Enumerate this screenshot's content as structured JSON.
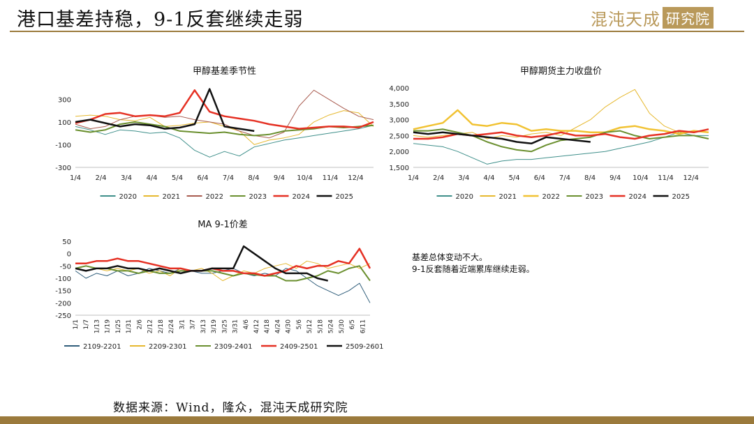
{
  "page": {
    "title": "港口基差持稳，9-1反套继续走弱",
    "logo_text": "混沌天成",
    "logo_boxed_text": "研究院",
    "notes": [
      "基差总体变动不大。",
      "9-1反套随着近端累库继续走弱。"
    ],
    "source": "数据来源：Wind，隆众，混沌天成研究院",
    "colors": {
      "accent": "#9b7a3c",
      "logo": "#b9995a"
    }
  },
  "chart_data": [
    {
      "id": "basis",
      "type": "line",
      "title": "甲醇基差季节性",
      "xlabel": "",
      "ylabel": "",
      "x_ticks": [
        "1/4",
        "2/4",
        "3/4",
        "4/4",
        "5/4",
        "6/4",
        "7/4",
        "8/4",
        "9/4",
        "10/4",
        "11/4",
        "12/4"
      ],
      "y_ticks": [
        300,
        100,
        -100,
        -300
      ],
      "ylim": [
        -300,
        400
      ],
      "legend_position": "bottom",
      "series": [
        {
          "name": "2020",
          "color": "#3e8f8a",
          "width": 1,
          "values": [
            60,
            30,
            -10,
            30,
            20,
            0,
            10,
            -40,
            -150,
            -210,
            -160,
            -200,
            -120,
            -90,
            -60,
            -40,
            -20,
            0,
            20,
            40,
            70
          ]
        },
        {
          "name": "2021",
          "color": "#e6b82e",
          "width": 1,
          "values": [
            150,
            160,
            150,
            120,
            110,
            140,
            60,
            70,
            90,
            100,
            60,
            20,
            -100,
            -60,
            -40,
            -10,
            100,
            160,
            200,
            180,
            60
          ]
        },
        {
          "name": "2022",
          "color": "#a85a4e",
          "width": 1,
          "values": [
            80,
            40,
            60,
            120,
            150,
            160,
            140,
            150,
            120,
            100,
            80,
            20,
            -20,
            -40,
            10,
            240,
            380,
            300,
            220,
            150,
            120
          ]
        },
        {
          "name": "2023",
          "color": "#6a8f2e",
          "width": 2,
          "values": [
            30,
            10,
            30,
            80,
            100,
            80,
            60,
            20,
            10,
            0,
            10,
            -10,
            -20,
            -10,
            20,
            30,
            40,
            60,
            50,
            60,
            70
          ]
        },
        {
          "name": "2024",
          "color": "#e53023",
          "width": 2.5,
          "values": [
            90,
            120,
            170,
            180,
            150,
            160,
            150,
            180,
            380,
            190,
            150,
            130,
            110,
            80,
            60,
            40,
            50,
            60,
            60,
            50,
            100
          ]
        },
        {
          "name": "2025",
          "color": "#111111",
          "width": 2.5,
          "values": [
            100,
            120,
            90,
            60,
            80,
            70,
            40,
            50,
            80,
            390,
            60,
            40,
            20,
            null,
            null,
            null,
            null,
            null,
            null,
            null,
            null
          ]
        }
      ]
    },
    {
      "id": "futures",
      "type": "line",
      "title": "甲醇期货主力收盘价",
      "xlabel": "",
      "ylabel": "",
      "x_ticks": [
        "1/4",
        "2/4",
        "3/4",
        "4/4",
        "5/4",
        "6/4",
        "7/4",
        "8/4",
        "9/4",
        "10/4",
        "11/4",
        "12/4"
      ],
      "y_ticks": [
        "4,000",
        "3,500",
        "3,000",
        "2,500",
        "2,000",
        "1,500"
      ],
      "ylim": [
        1500,
        4000
      ],
      "legend_position": "bottom",
      "series": [
        {
          "name": "2020",
          "color": "#3e8f8a",
          "width": 1,
          "values": [
            2250,
            2200,
            2150,
            2000,
            1800,
            1600,
            1700,
            1750,
            1750,
            1800,
            1850,
            1900,
            1950,
            2000,
            2100,
            2200,
            2300,
            2450,
            2600,
            2500,
            2500
          ]
        },
        {
          "name": "2021",
          "color": "#e6b82e",
          "width": 1,
          "values": [
            2500,
            2450,
            2500,
            2550,
            2600,
            2400,
            2500,
            2450,
            2550,
            2600,
            2500,
            2750,
            3000,
            3400,
            3700,
            3950,
            3200,
            2800,
            2600,
            2650,
            2600
          ]
        },
        {
          "name": "2022",
          "color": "#f1c232",
          "width": 2.5,
          "values": [
            2700,
            2800,
            2900,
            3300,
            2850,
            2800,
            2900,
            2850,
            2650,
            2700,
            2650,
            2650,
            2600,
            2600,
            2750,
            2800,
            2700,
            2650,
            2550,
            2650,
            2600
          ]
        },
        {
          "name": "2023",
          "color": "#6a8f2e",
          "width": 2,
          "values": [
            2650,
            2650,
            2700,
            2600,
            2500,
            2300,
            2150,
            2050,
            2000,
            2200,
            2350,
            2400,
            2450,
            2600,
            2650,
            2500,
            2400,
            2450,
            2500,
            2500,
            2400
          ]
        },
        {
          "name": "2024",
          "color": "#e53023",
          "width": 2.5,
          "values": [
            2400,
            2400,
            2450,
            2550,
            2500,
            2550,
            2600,
            2500,
            2450,
            2500,
            2600,
            2500,
            2500,
            2550,
            2450,
            2400,
            2500,
            2550,
            2650,
            2600,
            2700
          ]
        },
        {
          "name": "2025",
          "color": "#111111",
          "width": 2.5,
          "values": [
            2600,
            2550,
            2600,
            2550,
            2500,
            2450,
            2400,
            2300,
            2250,
            2450,
            2400,
            2350,
            2300,
            null,
            null,
            null,
            null,
            null,
            null,
            null,
            null
          ]
        }
      ]
    },
    {
      "id": "spread",
      "type": "line",
      "title": "MA 9-1价差",
      "xlabel": "",
      "ylabel": "",
      "x_ticks": [
        "1/1",
        "1/7",
        "1/13",
        "1/19",
        "1/25",
        "1/31",
        "2/6",
        "2/12",
        "2/18",
        "2/24",
        "3/1",
        "3/7",
        "3/13",
        "3/19",
        "3/25",
        "3/31",
        "4/6",
        "4/12",
        "4/18",
        "4/24",
        "4/30",
        "5/6",
        "5/12",
        "5/18",
        "5/24",
        "5/30",
        "6/5",
        "6/11"
      ],
      "y_ticks": [
        50,
        0,
        -50,
        -100,
        -150,
        -200,
        -250
      ],
      "ylim": [
        -250,
        50
      ],
      "legend_position": "bottom",
      "series": [
        {
          "name": "2109-2201",
          "color": "#2f5d7a",
          "width": 1,
          "values": [
            -70,
            -100,
            -80,
            -90,
            -70,
            -90,
            -80,
            -60,
            -70,
            -80,
            -60,
            -70,
            -80,
            -80,
            -70,
            -60,
            -80,
            -90,
            -80,
            -90,
            -60,
            -70,
            -100,
            -130,
            -150,
            -170,
            -150,
            -120,
            -200
          ]
        },
        {
          "name": "2209-2301",
          "color": "#e6b82e",
          "width": 1,
          "values": [
            -60,
            -50,
            -60,
            -70,
            -60,
            -70,
            -60,
            -80,
            -70,
            -90,
            -60,
            -70,
            -60,
            -80,
            -110,
            -90,
            -70,
            -80,
            -60,
            -50,
            -40,
            -60,
            -30,
            -40,
            -60,
            -50,
            -40,
            -60,
            -40
          ]
        },
        {
          "name": "2309-2401",
          "color": "#6a8f2e",
          "width": 2,
          "values": [
            -60,
            -50,
            -60,
            -60,
            -70,
            -70,
            -80,
            -70,
            -80,
            -80,
            -70,
            -70,
            -70,
            -70,
            -80,
            -90,
            -80,
            -85,
            -90,
            -90,
            -110,
            -110,
            -100,
            -90,
            -70,
            -80,
            -60,
            -50,
            -110
          ]
        },
        {
          "name": "2409-2501",
          "color": "#e53023",
          "width": 2.5,
          "values": [
            -40,
            -40,
            -30,
            -30,
            -20,
            -30,
            -30,
            -40,
            -50,
            -60,
            -60,
            -70,
            -70,
            -60,
            -70,
            -70,
            -80,
            -80,
            -90,
            -80,
            -70,
            -50,
            -60,
            -50,
            -50,
            -30,
            -40,
            20,
            -60
          ]
        },
        {
          "name": "2509-2601",
          "color": "#111111",
          "width": 2.5,
          "values": [
            -60,
            -70,
            -60,
            -60,
            -50,
            -60,
            -60,
            -70,
            -60,
            -70,
            -80,
            -70,
            -70,
            -60,
            -60,
            -60,
            30,
            0,
            -30,
            -60,
            -80,
            -80,
            -80,
            -100,
            -110,
            null,
            null,
            null,
            null
          ]
        }
      ]
    }
  ]
}
